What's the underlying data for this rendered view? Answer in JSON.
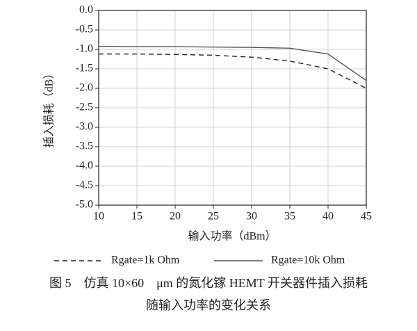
{
  "chart_data": {
    "type": "line",
    "ylabel": "插入损耗（dB）",
    "xlabel": "输入功率（dBm）",
    "caption": [
      "图 5　仿真 10×60　μm 的氮化镓 HEMT 开关器件插入损耗",
      "随输入功率的变化关系"
    ],
    "x": [
      10,
      15,
      20,
      25,
      30,
      35,
      40,
      45
    ],
    "series": [
      {
        "name": "Rgate=1k Ohm",
        "color": "#222222",
        "line_style": "dashed",
        "values": [
          -1.12,
          -1.12,
          -1.13,
          -1.15,
          -1.2,
          -1.3,
          -1.5,
          -2.0
        ]
      },
      {
        "name": "Rgate=10k Ohm",
        "color": "#555555",
        "line_style": "solid",
        "values": [
          -0.92,
          -0.93,
          -0.93,
          -0.94,
          -0.95,
          -0.97,
          -1.12,
          -1.8
        ]
      }
    ],
    "xlim": [
      10,
      45
    ],
    "xticks": [
      10,
      15,
      20,
      25,
      30,
      35,
      40,
      45
    ],
    "ylim": [
      -5,
      0
    ],
    "yticks": [
      {
        "value": 0,
        "label": "0.0"
      },
      -0.5,
      {
        "value": -1,
        "label": "-1.0"
      },
      -1.5,
      {
        "value": -2,
        "label": "-2.0"
      },
      -2.5,
      {
        "value": -3,
        "label": "-3.0"
      },
      -3.5,
      {
        "value": -4,
        "label": "-4.0"
      },
      -4.5,
      {
        "value": -5,
        "label": "-5.0"
      }
    ],
    "grid": true
  }
}
